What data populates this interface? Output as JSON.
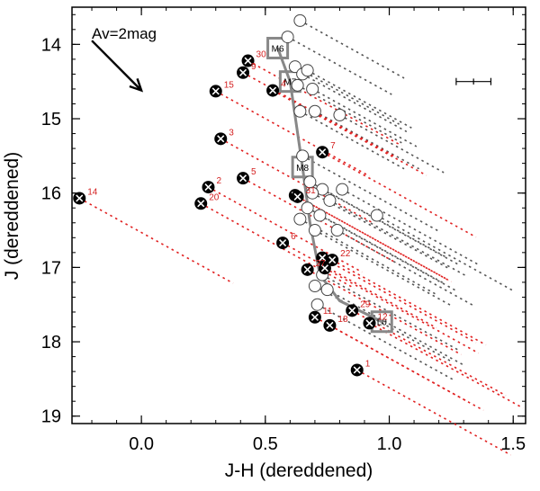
{
  "chart_data": {
    "type": "scatter",
    "xlabel": "J-H (dereddened)",
    "ylabel": "J (dereddened)",
    "xlim": [
      -0.28,
      1.55
    ],
    "ylim": [
      19.1,
      13.5
    ],
    "xticks": [
      0.0,
      0.5,
      1.0,
      1.5
    ],
    "xtick_labels": [
      "0.0",
      "0.5",
      "1.0",
      "1.5"
    ],
    "yticks": [
      14,
      15,
      16,
      17,
      18,
      19
    ],
    "ytick_labels": [
      "14",
      "15",
      "16",
      "17",
      "18",
      "19"
    ],
    "reddening_vector": {
      "label": "Av=2mag",
      "from": [
        -0.2,
        13.95
      ],
      "to": [
        0.0,
        14.62
      ]
    },
    "reddening_track_slope": 0.3,
    "error_bar": {
      "x": 1.34,
      "y": 14.5,
      "xerr": 0.07,
      "yerr": 0.04
    },
    "sequence": {
      "name": "spectral type sequence",
      "color": "#888888",
      "points": [
        {
          "label": "M6",
          "x": 0.55,
          "y": 14.05
        },
        {
          "label": "M7",
          "x": 0.6,
          "y": 14.5
        },
        {
          "label": "M8",
          "x": 0.65,
          "y": 15.65
        },
        {
          "label": "",
          "x": 0.68,
          "y": 16.4
        },
        {
          "label": "",
          "x": 0.72,
          "y": 17.1
        },
        {
          "label": "",
          "x": 0.8,
          "y": 17.45
        },
        {
          "label": "L0",
          "x": 0.97,
          "y": 17.73
        }
      ]
    },
    "series": [
      {
        "name": "Open circles",
        "marker": "open-circle",
        "track_color": "#555555",
        "points": [
          {
            "x": 0.64,
            "y": 13.68
          },
          {
            "x": 0.59,
            "y": 13.9
          },
          {
            "x": 0.62,
            "y": 14.3
          },
          {
            "x": 0.65,
            "y": 14.4
          },
          {
            "x": 0.67,
            "y": 14.35
          },
          {
            "x": 0.63,
            "y": 14.55
          },
          {
            "x": 0.69,
            "y": 14.6
          },
          {
            "x": 0.64,
            "y": 14.9
          },
          {
            "x": 0.7,
            "y": 14.9
          },
          {
            "x": 0.8,
            "y": 14.95
          },
          {
            "x": 0.65,
            "y": 15.5
          },
          {
            "x": 0.68,
            "y": 15.85
          },
          {
            "x": 0.73,
            "y": 15.95
          },
          {
            "x": 0.81,
            "y": 15.95
          },
          {
            "x": 0.69,
            "y": 16.0
          },
          {
            "x": 0.76,
            "y": 16.1
          },
          {
            "x": 0.67,
            "y": 16.2
          },
          {
            "x": 0.72,
            "y": 16.3
          },
          {
            "x": 0.64,
            "y": 16.35
          },
          {
            "x": 0.95,
            "y": 16.3
          },
          {
            "x": 0.7,
            "y": 16.5
          },
          {
            "x": 0.79,
            "y": 16.5
          },
          {
            "x": 0.73,
            "y": 17.1
          },
          {
            "x": 0.7,
            "y": 17.25
          },
          {
            "x": 0.75,
            "y": 17.3
          },
          {
            "x": 0.71,
            "y": 17.5
          }
        ]
      },
      {
        "name": "Labeled sources",
        "marker": "filled-circle-cross",
        "track_color": "#e02020",
        "points": [
          {
            "label": "14",
            "x": -0.25,
            "y": 16.07
          },
          {
            "label": "20",
            "x": 0.24,
            "y": 16.14
          },
          {
            "label": "2",
            "x": 0.27,
            "y": 15.92
          },
          {
            "label": "15",
            "x": 0.3,
            "y": 14.63
          },
          {
            "label": "3",
            "x": 0.32,
            "y": 15.27
          },
          {
            "label": "5",
            "x": 0.41,
            "y": 15.8
          },
          {
            "label": "30",
            "x": 0.43,
            "y": 14.22
          },
          {
            "label": "9",
            "x": 0.41,
            "y": 14.38
          },
          {
            "label": "4",
            "x": 0.53,
            "y": 14.62
          },
          {
            "label": "6",
            "x": 0.57,
            "y": 16.67
          },
          {
            "label": "",
            "x": 0.62,
            "y": 16.03
          },
          {
            "label": "31",
            "x": 0.63,
            "y": 16.05
          },
          {
            "label": "7",
            "x": 0.73,
            "y": 15.45
          },
          {
            "label": "",
            "x": 0.73,
            "y": 16.87
          },
          {
            "label": "22",
            "x": 0.77,
            "y": 16.9
          },
          {
            "label": "",
            "x": 0.74,
            "y": 17.01
          },
          {
            "label": "27",
            "x": 0.67,
            "y": 17.03
          },
          {
            "label": "11",
            "x": 0.7,
            "y": 17.67
          },
          {
            "label": "18",
            "x": 0.76,
            "y": 17.78
          },
          {
            "label": "29",
            "x": 0.85,
            "y": 17.58
          },
          {
            "label": "12",
            "x": 0.92,
            "y": 17.75
          },
          {
            "label": "1",
            "x": 0.87,
            "y": 18.38
          }
        ]
      }
    ]
  }
}
